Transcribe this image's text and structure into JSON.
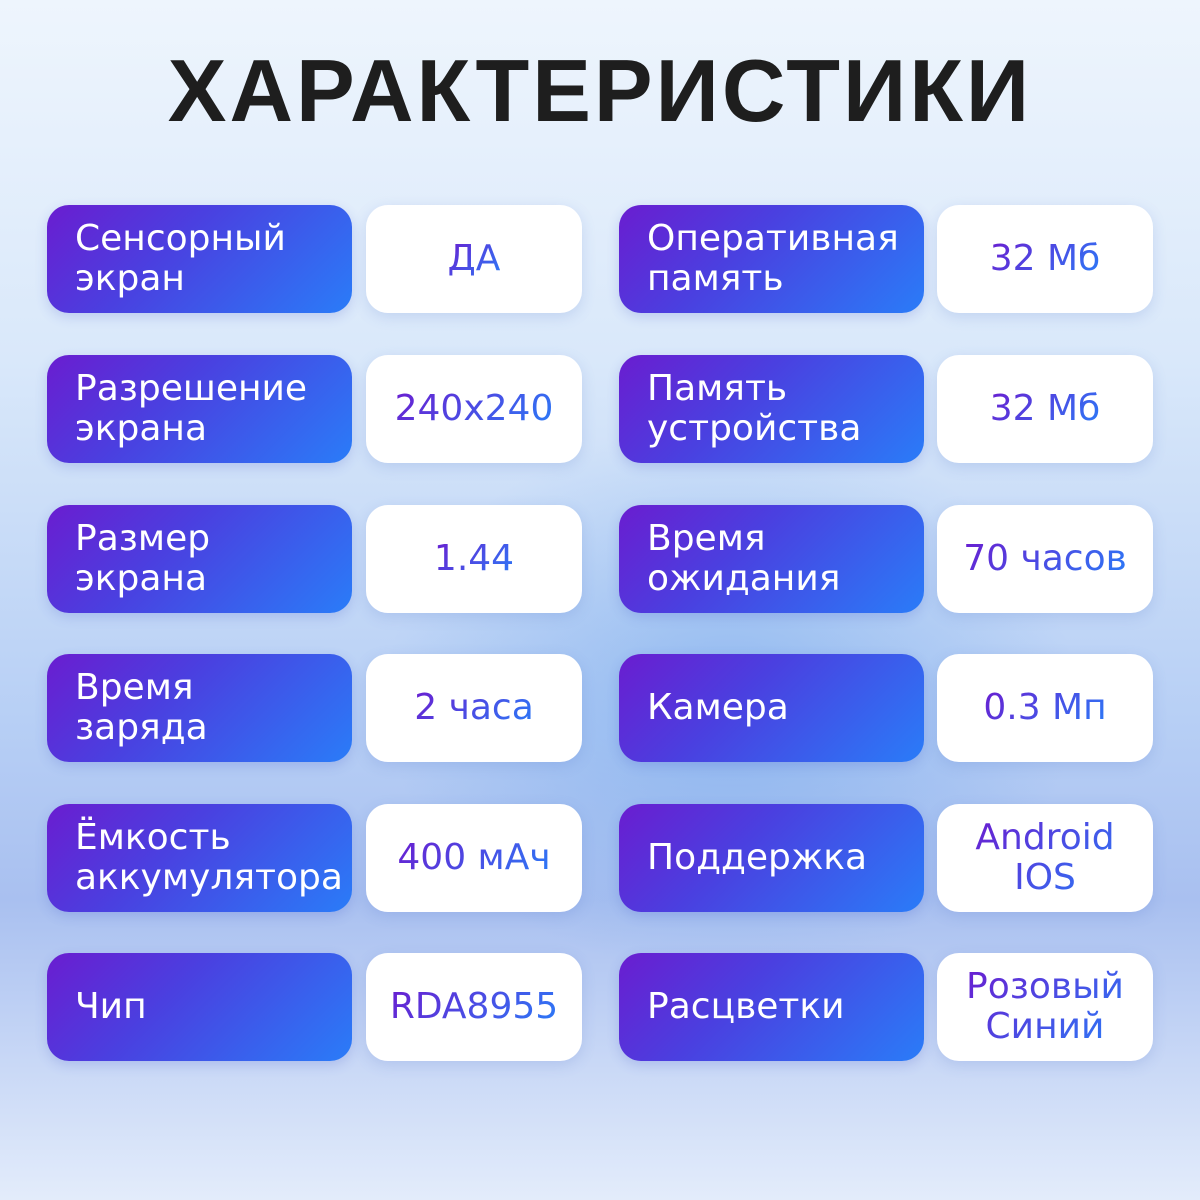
{
  "title": "ХАРАКТЕРИСТИКИ",
  "colors": {
    "gradient_start": "#6a1dd0",
    "gradient_end": "#2a7cf8",
    "title": "#1e1e1e"
  },
  "left": [
    {
      "label": "Сенсорный\nэкран",
      "value": "ДА"
    },
    {
      "label": "Разрешение\nэкрана",
      "value": "240x240"
    },
    {
      "label": "Размер\nэкрана",
      "value": "1.44"
    },
    {
      "label": "Время\nзаряда",
      "value": "2 часа"
    },
    {
      "label": "Ёмкость\nаккумулятора",
      "value": "400 мАч"
    },
    {
      "label": "Чип",
      "value": "RDA8955"
    }
  ],
  "right": [
    {
      "label": "Оперативная\nпамять",
      "value": "32 Мб"
    },
    {
      "label": "Память\nустройства",
      "value": "32 Мб"
    },
    {
      "label": "Время\nожидания",
      "value": "70 часов"
    },
    {
      "label": "Камера",
      "value": "0.3 Мп"
    },
    {
      "label": "Поддержка",
      "value": "Android\nIOS"
    },
    {
      "label": "Расцветки",
      "value": "Розовый\nСиний"
    }
  ]
}
